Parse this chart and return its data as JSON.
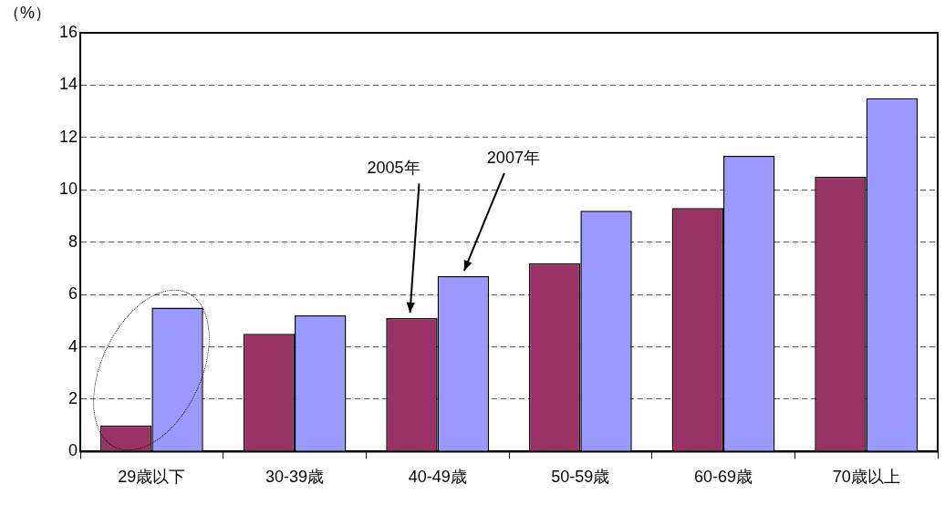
{
  "chart_data": {
    "type": "bar",
    "ylabel": "（%）",
    "categories": [
      "29歳以下",
      "30-39歳",
      "40-49歳",
      "50-59歳",
      "60-69歳",
      "70歳以上"
    ],
    "series": [
      {
        "name": "2005年",
        "color": "#993366",
        "values": [
          1.0,
          4.5,
          5.1,
          7.2,
          9.3,
          10.5
        ]
      },
      {
        "name": "2007年",
        "color": "#9999ff",
        "values": [
          5.5,
          5.2,
          6.7,
          9.2,
          11.3,
          13.5
        ]
      }
    ],
    "ylim": [
      0,
      16
    ],
    "yticks": [
      0,
      2,
      4,
      6,
      8,
      10,
      12,
      14,
      16
    ],
    "grid": "y",
    "legend": false
  }
}
